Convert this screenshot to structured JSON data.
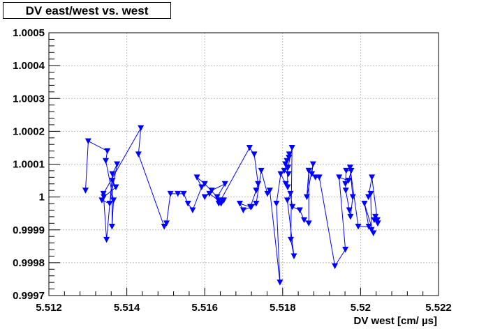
{
  "chart_data": {
    "type": "line",
    "title": "DV east/west vs. west",
    "xlabel": "DV west [cm/ µs]",
    "ylabel": "",
    "xlim": [
      5.512,
      5.522
    ],
    "ylim": [
      0.9997,
      1.0005
    ],
    "x_ticks": [
      "5.512",
      "5.514",
      "5.516",
      "5.518",
      "5.52",
      "5.522"
    ],
    "y_ticks": [
      "0.9997",
      "0.9998",
      "0.9999",
      "1",
      "1.0001",
      "1.0002",
      "1.0003",
      "1.0004",
      "1.0005"
    ],
    "grid": true,
    "legend": "none",
    "marker": "inverted-triangle",
    "color": "#0000ff",
    "series": [
      {
        "x": [
          5.51294,
          5.51301,
          5.5135,
          5.51346,
          5.51366,
          5.51362,
          5.51363,
          5.51372,
          5.51341,
          5.51336,
          5.51356,
          5.51375,
          5.51363,
          5.51348,
          5.5134,
          5.51436,
          5.5143,
          5.51496,
          5.51502,
          5.51512,
          5.51531,
          5.51546,
          5.51557,
          5.51569,
          5.51592,
          5.5158,
          5.516,
          5.51632,
          5.51652,
          5.51618,
          5.516,
          5.51612,
          5.51635,
          5.51642,
          5.51649,
          5.51644,
          5.51636,
          5.51715,
          5.51727,
          5.51737,
          5.51732,
          5.51717,
          5.5169,
          5.51699,
          5.5172,
          5.51732,
          5.51745,
          5.51761,
          5.51767,
          5.51793,
          5.51784,
          5.51795,
          5.51808,
          5.51813,
          5.51811,
          5.51817,
          5.51816,
          5.51804,
          5.51815,
          5.51807,
          5.51814,
          5.51824,
          5.51821,
          5.51829,
          5.51812,
          5.5182,
          5.51825,
          5.51844,
          5.51855,
          5.51867,
          5.51867,
          5.51875,
          5.51878,
          5.51862,
          5.51867,
          5.51884,
          5.51894,
          5.51934,
          5.51961,
          5.51945,
          5.51969,
          5.51976,
          5.51963,
          5.51961,
          5.51962,
          5.51971,
          5.51974,
          5.5198,
          5.51973,
          5.51994,
          5.52021,
          5.5201,
          5.52033,
          5.52028,
          5.52026,
          5.5202,
          5.52029,
          5.52043,
          5.52044,
          5.52038,
          5.52044,
          5.52035
        ],
        "y": [
          1.00002,
          1.00017,
          1.00014,
          1.00011,
          0.99999,
          0.99991,
          1.00005,
          1.00003,
          1.0,
          0.99999,
          0.99998,
          1.0001,
          1.00007,
          0.99987,
          1.00001,
          1.00021,
          1.00013,
          0.99991,
          0.99992,
          1.00001,
          1.00001,
          1.00001,
          0.99998,
          0.99996,
          1.00003,
          1.00006,
          1.00004,
          1.0,
          1.00004,
          1.00002,
          1.0,
          1.00001,
          0.99999,
          0.99998,
          0.99999,
          0.99999,
          0.99998,
          1.00015,
          1.00013,
          1.00004,
          1.00002,
          0.99997,
          0.99998,
          0.99996,
          0.99997,
          0.99998,
          1.00008,
          1.00001,
          1.00002,
          0.99974,
          0.99998,
          1.00007,
          1.00004,
          1.00003,
          1.00011,
          1.00013,
          1.00012,
          1.00008,
          1.00007,
          1.0001,
          1.00009,
          1.00015,
          0.99987,
          0.99982,
          0.99999,
          1.00001,
          0.99997,
          0.99996,
          0.99993,
          0.99992,
          1.00008,
          1.00007,
          1.0001,
          1.0,
          1.00008,
          1.00006,
          1.00006,
          0.99979,
          0.99984,
          1.00006,
          1.00005,
          1.00008,
          1.00008,
          1.00004,
          1.00002,
          0.99996,
          0.99994,
          1.0,
          1.00009,
          0.99991,
          0.99991,
          0.99998,
          0.99989,
          0.9999,
          1.00001,
          1.0,
          1.00006,
          0.99993,
          0.99992,
          0.99994,
          0.99992,
          0.99993
        ]
      }
    ]
  }
}
